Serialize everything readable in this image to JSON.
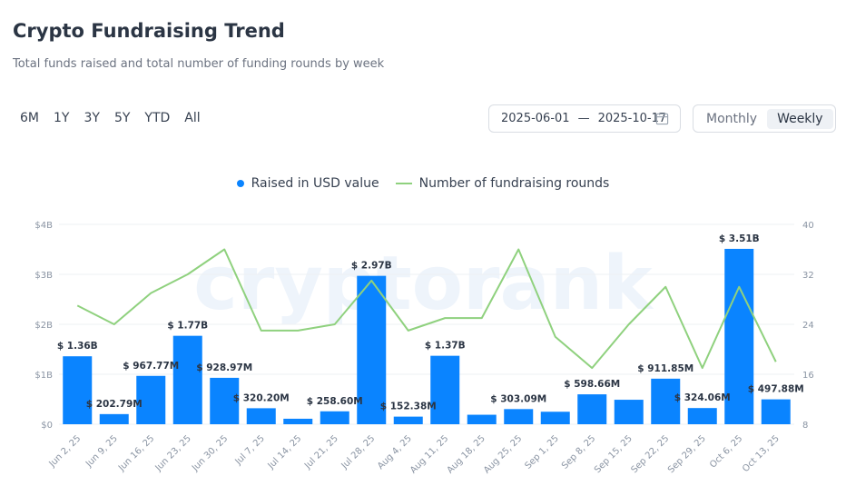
{
  "header": {
    "title": "Crypto Fundraising Trend",
    "subtitle": "Total funds raised and total number of funding rounds by week"
  },
  "ranges": [
    "6M",
    "1Y",
    "3Y",
    "5Y",
    "YTD",
    "All"
  ],
  "date_range": {
    "start": "2025-06-01",
    "separator": "—",
    "end": "2025-10-17",
    "icon": "calendar-icon"
  },
  "period_toggle": {
    "options": [
      "Monthly",
      "Weekly"
    ],
    "active": "Weekly"
  },
  "watermark": "cryptorank",
  "colors": {
    "bar": "#0a84ff",
    "line": "#8fd17e"
  },
  "chart_data": {
    "type": "bar",
    "categories": [
      "Jun 2, 25",
      "Jun 9, 25",
      "Jun 16, 25",
      "Jun 23, 25",
      "Jun 30, 25",
      "Jul 7, 25",
      "Jul 14, 25",
      "Jul 21, 25",
      "Jul 28, 25",
      "Aug 4, 25",
      "Aug 11, 25",
      "Aug 18, 25",
      "Aug 25, 25",
      "Sep 1, 25",
      "Sep 8, 25",
      "Sep 15, 25",
      "Sep 22, 25",
      "Sep 29, 25",
      "Oct 6, 25",
      "Oct 13, 25"
    ],
    "series": [
      {
        "name": "Raised in USD value",
        "type": "bar",
        "axis": "left",
        "values": [
          1.36,
          0.20279,
          0.96777,
          1.77,
          0.92897,
          0.3202,
          0.11,
          0.2586,
          2.97,
          0.15238,
          1.37,
          0.19,
          0.30309,
          0.25,
          0.59866,
          0.49,
          0.91185,
          0.32406,
          3.51,
          0.49788
        ],
        "labels": [
          "$ 1.36B",
          "$ 202.79M",
          "$ 967.77M",
          "$ 1.77B",
          "$ 928.97M",
          "$ 320.20M",
          "",
          "$ 258.60M",
          "$ 2.97B",
          "$ 152.38M",
          "$ 1.37B",
          "",
          "$ 303.09M",
          "",
          "$ 598.66M",
          "",
          "$ 911.85M",
          "$ 324.06M",
          "$ 3.51B",
          "$ 497.88M"
        ]
      },
      {
        "name": "Number of fundraising rounds",
        "type": "line",
        "axis": "right",
        "values": [
          27,
          24,
          29,
          32,
          36,
          23,
          23,
          24,
          31,
          23,
          25,
          25,
          36,
          22,
          17,
          24,
          30,
          17,
          30,
          18
        ]
      }
    ],
    "y_left": {
      "ticks": [
        "$0",
        "$1B",
        "$2B",
        "$3B",
        "$4B"
      ],
      "min": 0,
      "max": 4
    },
    "y_right": {
      "ticks": [
        "8",
        "16",
        "24",
        "32",
        "40"
      ],
      "min": 8,
      "max": 40
    },
    "legend_placement": "top-center",
    "grid": true
  }
}
